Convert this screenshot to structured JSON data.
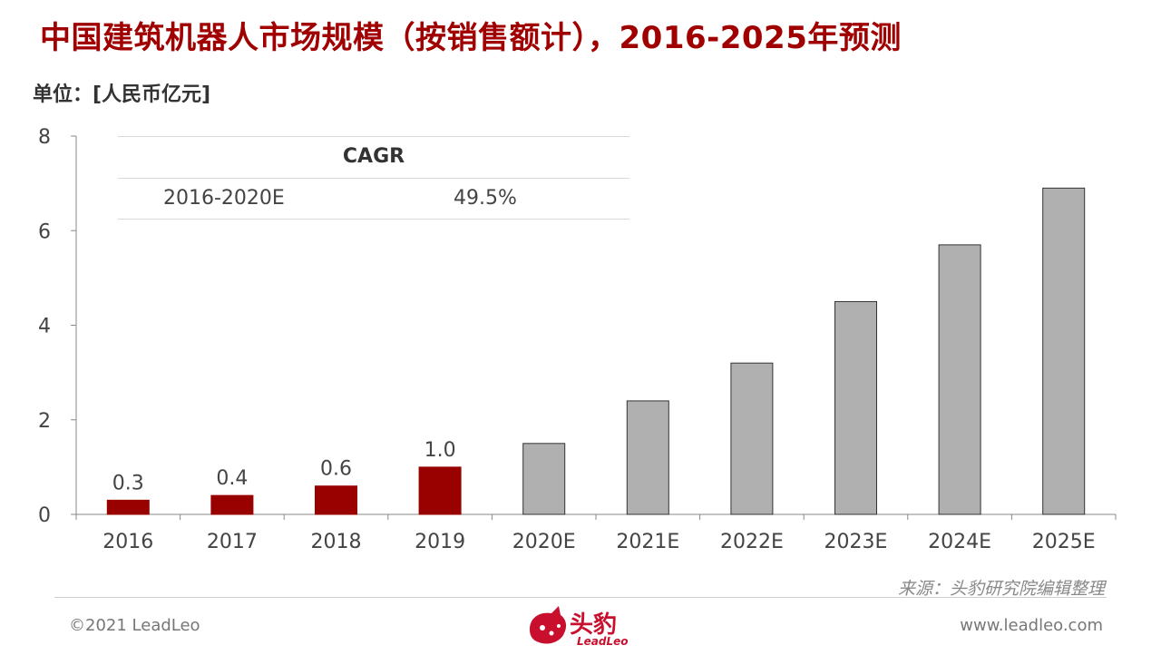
{
  "header": {
    "title": "中国建筑机器人市场规模（按销售额计），2016-2025年预测",
    "unit": "单位：[人民币亿元]"
  },
  "cagr": {
    "heading": "CAGR",
    "period": "2016-2020E",
    "value": "49.5%"
  },
  "footer": {
    "source": "来源：头豹研究院编辑整理",
    "copyright": "©2021 LeadLeo",
    "website": "www.leadleo.com",
    "logo_name": "头豹",
    "logo_sub": "LeadLeo"
  },
  "colors": {
    "actual": "#990000",
    "forecast": "#b0b0b0",
    "title": "#a00000"
  },
  "chart_data": {
    "type": "bar",
    "categories": [
      "2016",
      "2017",
      "2018",
      "2019",
      "2020E",
      "2021E",
      "2022E",
      "2023E",
      "2024E",
      "2025E"
    ],
    "values": [
      0.3,
      0.4,
      0.6,
      1.0,
      1.5,
      2.4,
      3.2,
      4.5,
      5.7,
      6.9
    ],
    "data_labels": [
      "0.3",
      "0.4",
      "0.6",
      "1.0",
      "",
      "",
      "",
      "",
      "",
      ""
    ],
    "forecast_from_index": 4,
    "ylim": [
      0,
      8
    ],
    "yticks": [
      0,
      2,
      4,
      6,
      8
    ],
    "grid": false,
    "legend": "none"
  }
}
